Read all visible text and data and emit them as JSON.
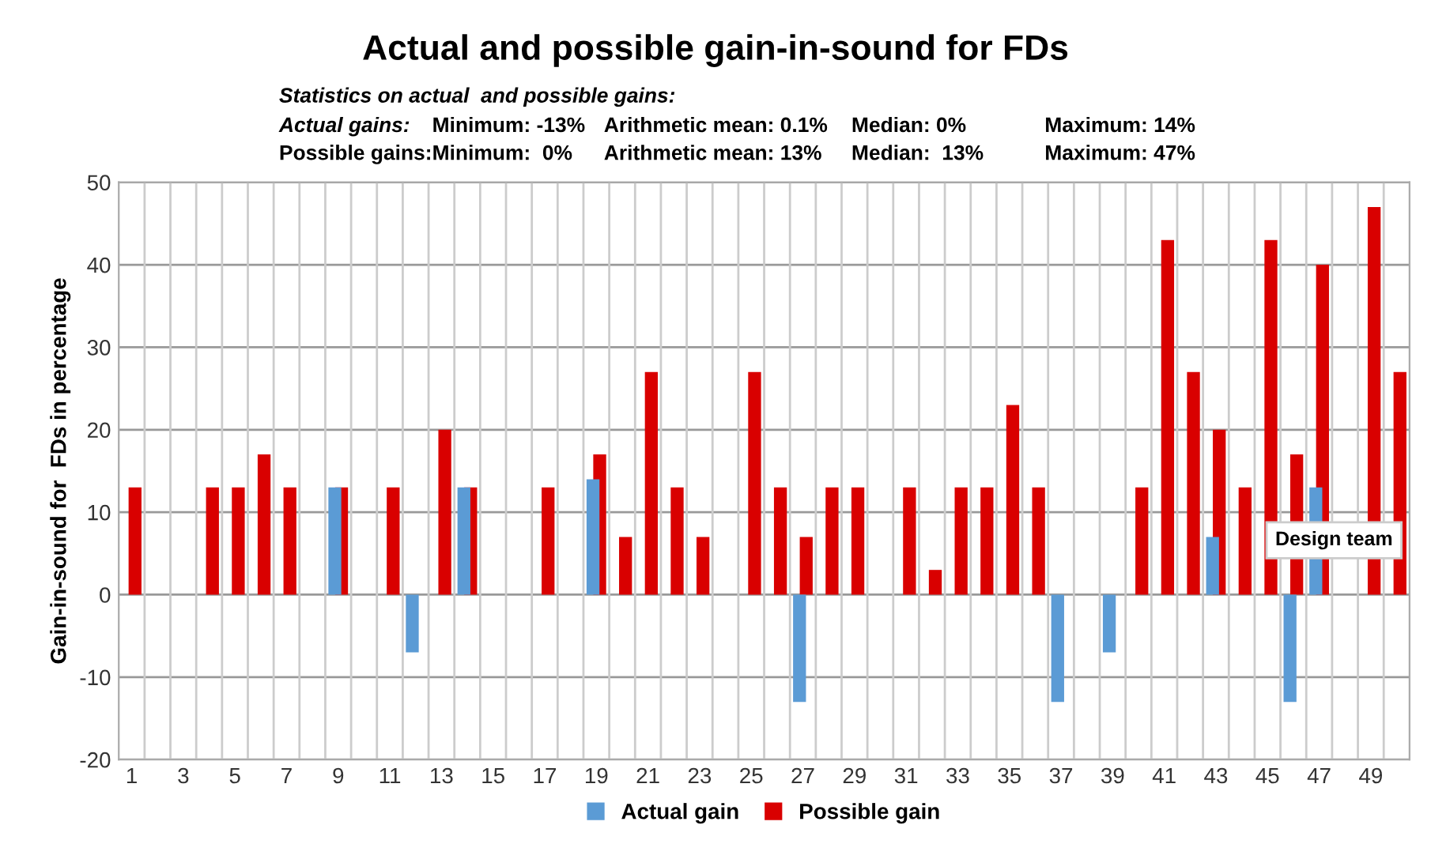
{
  "chart_data": {
    "type": "bar",
    "title": "Actual and possible gain-in-sound for FDs",
    "subtitle": "Statistics on actual  and possible gains:",
    "annotations": [
      "Actual gains:",
      "Minimum: -13%",
      "Arithmetic mean: 0.1%",
      "Median: 0%",
      "Maximum: 14%",
      "Possible gains:",
      "Minimum:  0%",
      "Arithmetic mean: 13%",
      "Median:  13%",
      "Maximum: 47%",
      "Design team"
    ],
    "ylabel": "Gain-in-sound for  FDs in percentage",
    "categories": [
      "1",
      null,
      "3",
      null,
      "5",
      null,
      "7",
      null,
      "9",
      null,
      "11",
      null,
      "13",
      null,
      "15",
      null,
      "17",
      null,
      "19",
      null,
      "21",
      null,
      "23",
      null,
      "25",
      null,
      "27",
      null,
      "29",
      null,
      "31",
      null,
      "33",
      null,
      "35",
      null,
      "37",
      null,
      "39",
      null,
      "41",
      null,
      "43",
      null,
      "45",
      null,
      "47",
      null,
      "49",
      null
    ],
    "series": [
      {
        "name": "Actual gain",
        "color": "#5b9bd5",
        "values": [
          0,
          0,
          0,
          0,
          0,
          0,
          0,
          0,
          13,
          0,
          0,
          -7,
          0,
          13,
          0,
          0,
          0,
          0,
          14,
          0,
          0,
          0,
          0,
          0,
          0,
          0,
          -13,
          0,
          0,
          0,
          0,
          0,
          0,
          0,
          0,
          0,
          -13,
          0,
          -7,
          0,
          0,
          0,
          7,
          0,
          0,
          -13,
          13,
          0,
          0,
          0
        ]
      },
      {
        "name": "Possible gain",
        "color": "#d90000",
        "values": [
          13,
          0,
          0,
          13,
          13,
          17,
          13,
          0,
          13,
          0,
          13,
          0,
          20,
          13,
          0,
          0,
          13,
          0,
          17,
          7,
          27,
          13,
          7,
          0,
          27,
          13,
          7,
          13,
          13,
          0,
          13,
          3,
          13,
          13,
          23,
          13,
          0,
          0,
          0,
          13,
          43,
          27,
          20,
          13,
          43,
          17,
          40,
          0,
          47,
          27
        ]
      }
    ],
    "ylim": [
      -20,
      50
    ],
    "yticks": [
      -20,
      -10,
      0,
      10,
      20,
      30,
      40,
      50
    ],
    "grid": true,
    "legend": "bottom"
  }
}
